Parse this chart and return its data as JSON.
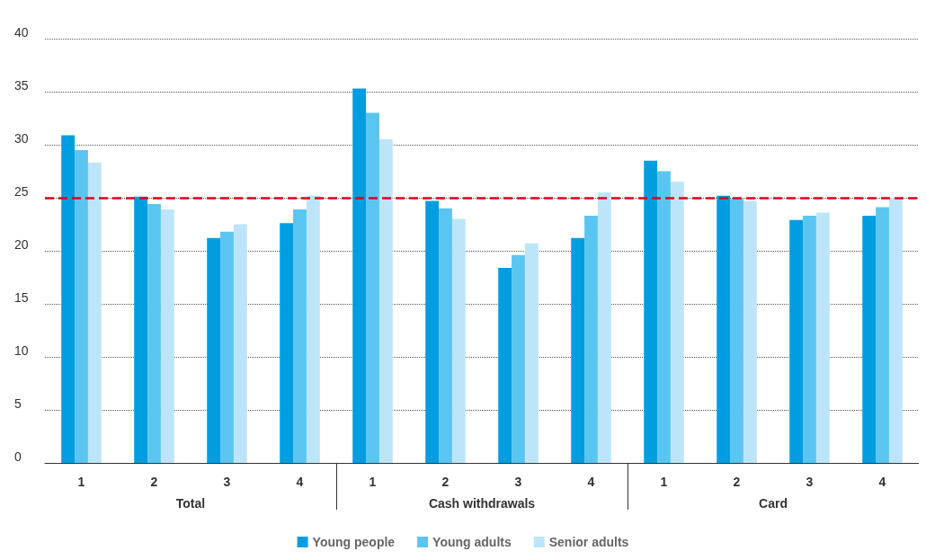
{
  "chart_data": {
    "type": "bar",
    "categories": [
      "1",
      "2",
      "3",
      "4",
      "1",
      "2",
      "3",
      "4",
      "1",
      "2",
      "3",
      "4"
    ],
    "annotations": [
      "Total",
      "Cash withdrawals",
      "Card"
    ],
    "series": [
      {
        "name": "Young people",
        "color": "#009ee0",
        "values": [
          30.9,
          25.1,
          21.2,
          22.6,
          35.3,
          24.7,
          18.4,
          21.2,
          28.5,
          25.2,
          22.9,
          23.3
        ]
      },
      {
        "name": "Young adults",
        "color": "#5bc5f2",
        "values": [
          29.5,
          24.4,
          21.8,
          23.9,
          33.0,
          24.0,
          19.6,
          23.3,
          27.5,
          24.9,
          23.3,
          24.1
        ]
      },
      {
        "name": "Senior adults",
        "color": "#bde5f9",
        "values": [
          28.3,
          23.9,
          22.5,
          25.2,
          30.5,
          23.0,
          20.7,
          25.5,
          26.5,
          24.7,
          23.6,
          25.0
        ]
      }
    ],
    "ylim": [
      0,
      40
    ],
    "yticks": [
      0,
      5,
      10,
      15,
      20,
      25,
      30,
      35,
      40
    ],
    "ref_lines": [
      {
        "axis": "y",
        "value": 25,
        "color": "#e2001a",
        "line_style": "dashed"
      }
    ],
    "grid": "y",
    "legend": "bottom"
  }
}
